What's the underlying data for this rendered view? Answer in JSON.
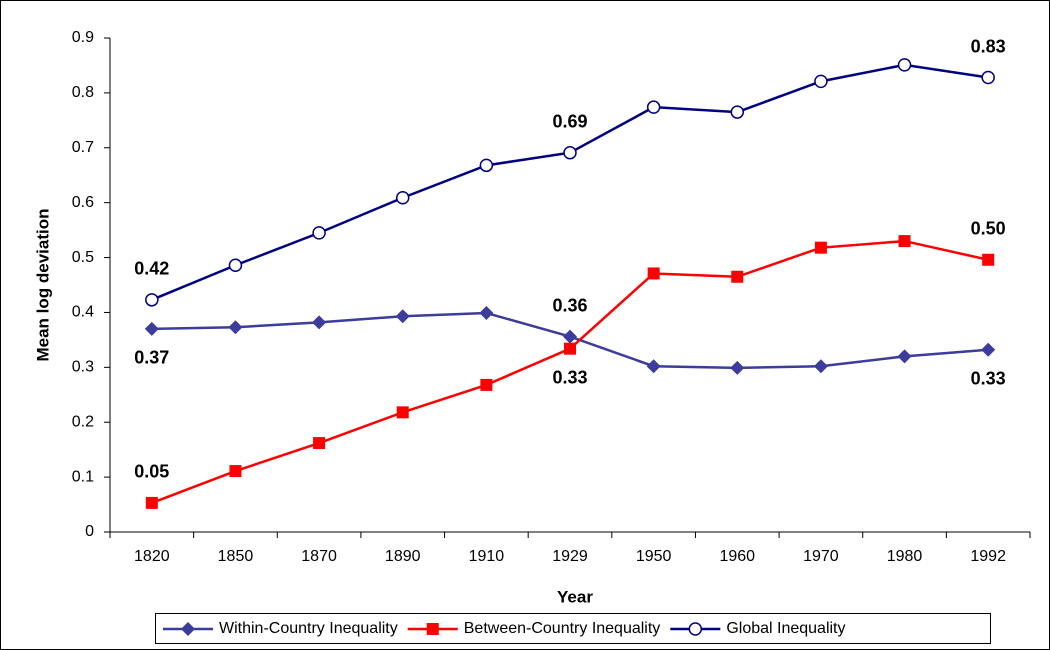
{
  "chart_data": {
    "type": "line",
    "x_label": "Year",
    "y_label": "Mean log deviation",
    "categories": [
      "1820",
      "1850",
      "1870",
      "1890",
      "1910",
      "1929",
      "1950",
      "1960",
      "1970",
      "1980",
      "1992"
    ],
    "series": [
      {
        "name": "Within-Country Inequality",
        "color": "#3c3c9c",
        "marker": "diamond",
        "values": [
          0.37,
          0.373,
          0.382,
          0.393,
          0.399,
          0.356,
          0.302,
          0.299,
          0.302,
          0.32,
          0.332
        ],
        "value_labels": [
          "0.37",
          null,
          null,
          null,
          null,
          "0.36",
          null,
          null,
          null,
          null,
          "0.33"
        ]
      },
      {
        "name": "Between-Country Inequality",
        "color": "#ff0000",
        "marker": "square",
        "values": [
          0.053,
          0.111,
          0.162,
          0.218,
          0.268,
          0.334,
          0.471,
          0.465,
          0.518,
          0.53,
          0.496
        ],
        "value_labels": [
          "0.05",
          null,
          null,
          null,
          null,
          "0.33",
          null,
          null,
          null,
          null,
          "0.50"
        ]
      },
      {
        "name": "Global Inequality",
        "color": "#000080",
        "marker": "circle",
        "values": [
          0.423,
          0.486,
          0.545,
          0.609,
          0.668,
          0.691,
          0.774,
          0.765,
          0.821,
          0.851,
          0.828
        ],
        "value_labels": [
          "0.42",
          null,
          null,
          null,
          null,
          "0.69",
          null,
          null,
          null,
          null,
          "0.83"
        ]
      }
    ],
    "ylim": [
      0,
      0.9
    ],
    "yticks": [
      0,
      0.1,
      0.2,
      0.3,
      0.4,
      0.5,
      0.6,
      0.7,
      0.8,
      0.9
    ],
    "grid": false,
    "legend": "bottom"
  }
}
